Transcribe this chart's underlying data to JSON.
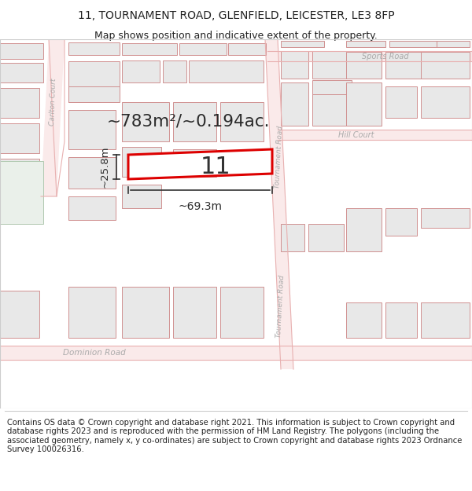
{
  "title_line1": "11, TOURNAMENT ROAD, GLENFIELD, LEICESTER, LE3 8FP",
  "title_line2": "Map shows position and indicative extent of the property.",
  "footer_text": "Contains OS data © Crown copyright and database right 2021. This information is subject to Crown copyright and database rights 2023 and is reproduced with the permission of HM Land Registry. The polygons (including the associated geometry, namely x, y co-ordinates) are subject to Crown copyright and database rights 2023 Ordnance Survey 100026316.",
  "area_label": "~783m²/~0.194ac.",
  "width_label": "~69.3m",
  "height_label": "~25.8m",
  "plot_number": "11",
  "bg_color": "#ffffff",
  "map_bg": "#ffffff",
  "road_fill": "#fce8e8",
  "road_stroke": "#e8b0b0",
  "building_fill": "#e8e8e8",
  "building_stroke": "#d09090",
  "highlight_color": "#dd0000",
  "road_label_color": "#aaaaaa",
  "text_color": "#222222",
  "title_fontsize": 10,
  "subtitle_fontsize": 9,
  "footer_fontsize": 7.2
}
